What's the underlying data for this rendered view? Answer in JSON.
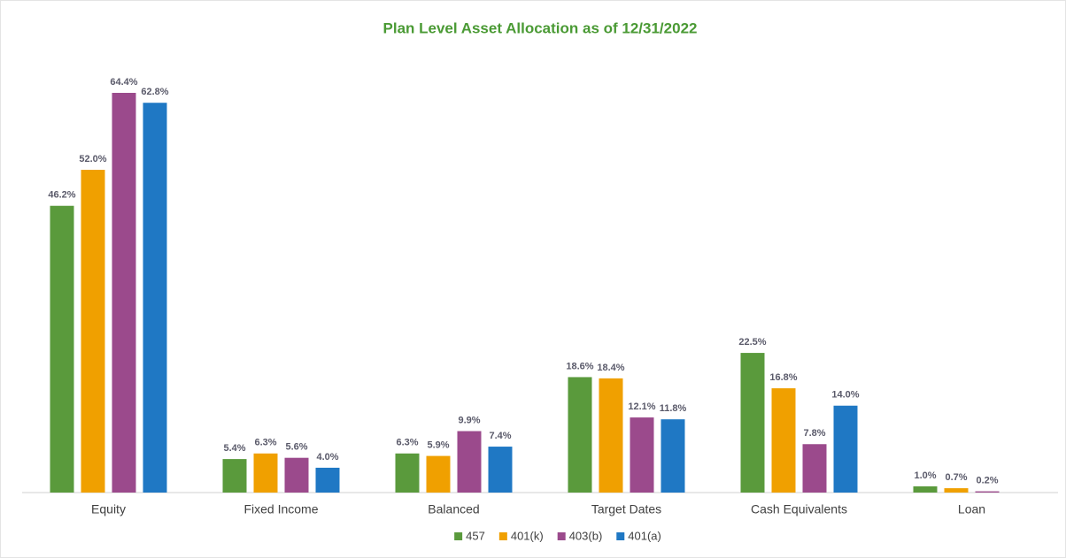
{
  "chart_data": {
    "type": "bar",
    "title": "Plan Level Asset Allocation as of 12/31/2022",
    "categories": [
      "Equity",
      "Fixed Income",
      "Balanced",
      "Target Dates",
      "Cash Equivalents",
      "Loan"
    ],
    "series": [
      {
        "name": "457",
        "color": "#5a9a3c",
        "values": [
          46.2,
          5.4,
          6.3,
          18.6,
          22.5,
          1.0
        ],
        "value_labels": [
          "46.2%",
          "5.4%",
          "6.3%",
          "18.6%",
          "22.5%",
          "1.0%"
        ]
      },
      {
        "name": "401(k)",
        "color": "#f0a000",
        "values": [
          52.0,
          6.3,
          5.9,
          18.4,
          16.8,
          0.7
        ],
        "value_labels": [
          "52.0%",
          "6.3%",
          "5.9%",
          "18.4%",
          "16.8%",
          "0.7%"
        ]
      },
      {
        "name": "403(b)",
        "color": "#9b4a8c",
        "values": [
          64.4,
          5.6,
          9.9,
          12.1,
          7.8,
          0.2
        ],
        "value_labels": [
          "64.4%",
          "5.6%",
          "9.9%",
          "12.1%",
          "7.8%",
          "0.2%"
        ]
      },
      {
        "name": "401(a)",
        "color": "#1f78c4",
        "values": [
          62.8,
          4.0,
          7.4,
          11.8,
          14.0,
          null
        ],
        "value_labels": [
          "62.8%",
          "4.0%",
          "7.4%",
          "11.8%",
          "14.0%",
          null
        ]
      }
    ],
    "legend": "bottom"
  }
}
